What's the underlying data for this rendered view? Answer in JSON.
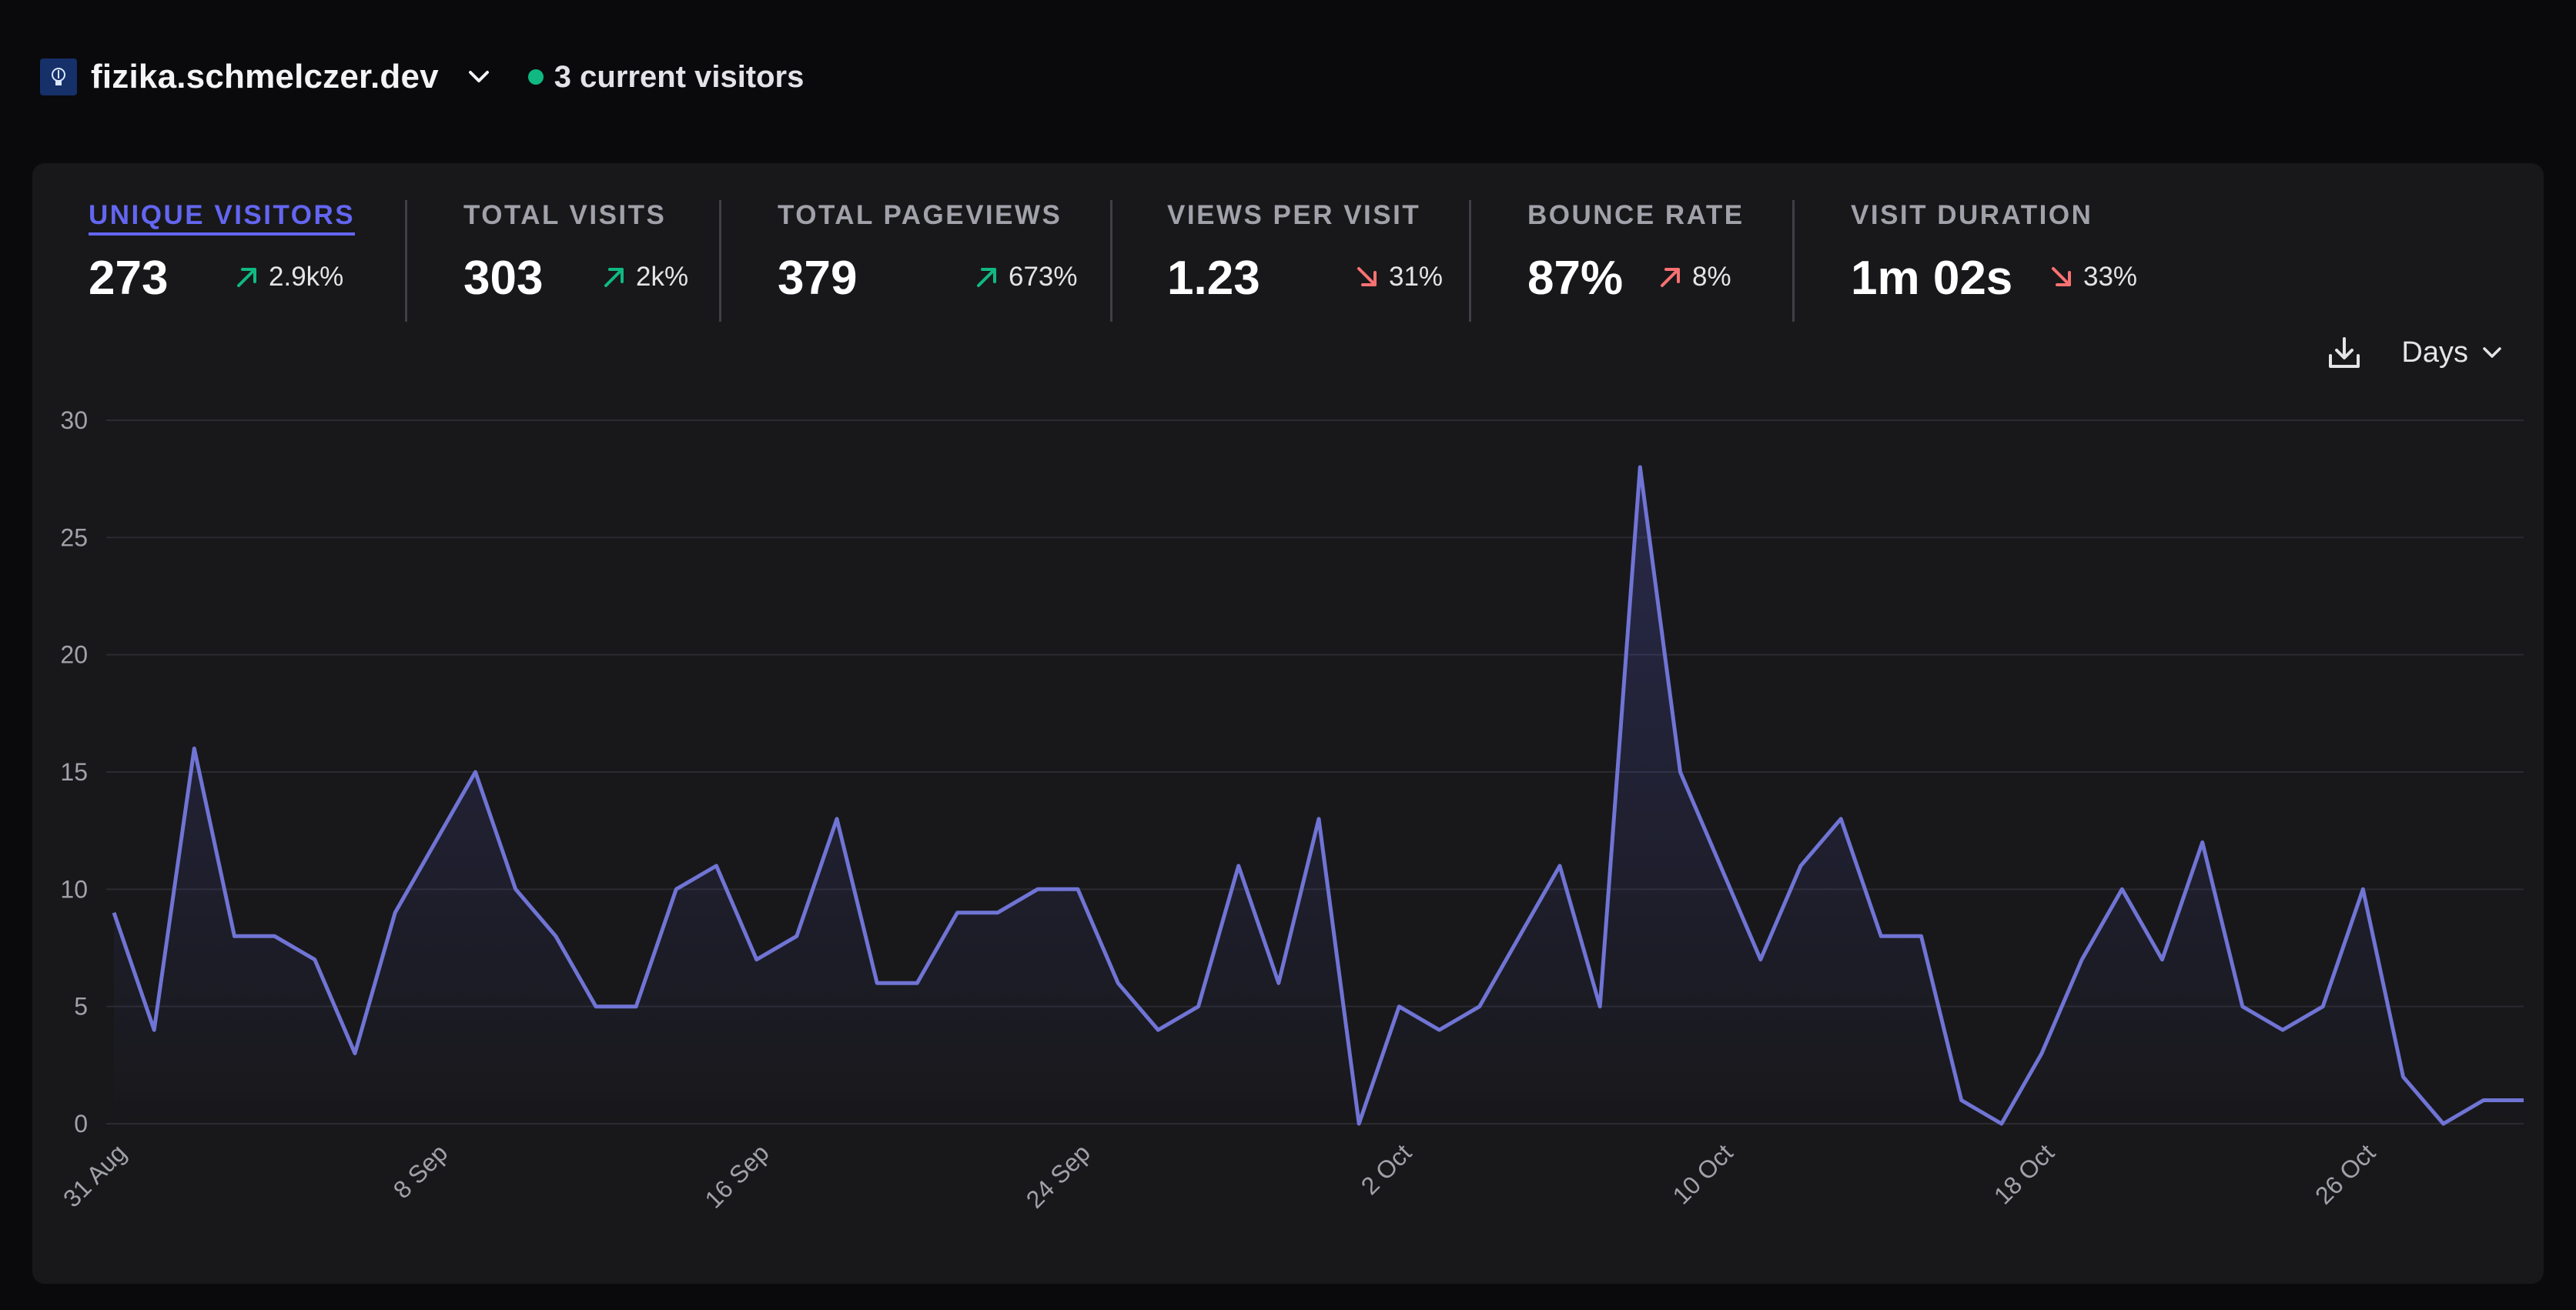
{
  "header": {
    "domain": "fizika.schmelczer.dev",
    "current_visitors": "3 current visitors",
    "live_color": "#10b981"
  },
  "stats": [
    {
      "label": "UNIQUE VISITORS",
      "value": "273",
      "change": "2.9k%",
      "direction": "up",
      "active": true
    },
    {
      "label": "TOTAL VISITS",
      "value": "303",
      "change": "2k%",
      "direction": "up",
      "active": false
    },
    {
      "label": "TOTAL PAGEVIEWS",
      "value": "379",
      "change": "673%",
      "direction": "up",
      "active": false
    },
    {
      "label": "VIEWS PER VISIT",
      "value": "1.23",
      "change": "31%",
      "direction": "down",
      "active": false
    },
    {
      "label": "BOUNCE RATE",
      "value": "87%",
      "change": "8%",
      "direction": "up-bad",
      "active": false
    },
    {
      "label": "VISIT DURATION",
      "value": "1m 02s",
      "change": "33%",
      "direction": "down",
      "active": false
    }
  ],
  "controls": {
    "interval": "Days",
    "download_icon": "download-icon"
  },
  "colors": {
    "accent": "#6366f1",
    "line": "#7074d4",
    "positive": "#10b981",
    "negative": "#f87171"
  },
  "chart_data": {
    "type": "area",
    "title": "",
    "xlabel": "",
    "ylabel": "",
    "ylim": [
      0,
      30
    ],
    "y_ticks": [
      "0",
      "5",
      "10",
      "15",
      "20",
      "25",
      "30"
    ],
    "x_tick_labels": [
      "31 Aug",
      "8 Sep",
      "16 Sep",
      "24 Sep",
      "2 Oct",
      "10 Oct",
      "18 Oct",
      "26 Oct"
    ],
    "grid": true,
    "x": [
      "31 Aug",
      "1 Sep",
      "2 Sep",
      "3 Sep",
      "4 Sep",
      "5 Sep",
      "6 Sep",
      "7 Sep",
      "8 Sep",
      "9 Sep",
      "10 Sep",
      "11 Sep",
      "12 Sep",
      "13 Sep",
      "14 Sep",
      "15 Sep",
      "16 Sep",
      "17 Sep",
      "18 Sep",
      "19 Sep",
      "20 Sep",
      "21 Sep",
      "22 Sep",
      "23 Sep",
      "24 Sep",
      "25 Sep",
      "26 Sep",
      "27 Sep",
      "28 Sep",
      "29 Sep",
      "30 Sep",
      "1 Oct",
      "2 Oct",
      "3 Oct",
      "4 Oct",
      "5 Oct",
      "6 Oct",
      "7 Oct",
      "8 Oct",
      "9 Oct",
      "10 Oct",
      "11 Oct",
      "12 Oct",
      "13 Oct",
      "14 Oct",
      "15 Oct",
      "16 Oct",
      "17 Oct",
      "18 Oct",
      "19 Oct",
      "20 Oct",
      "21 Oct",
      "22 Oct",
      "23 Oct",
      "24 Oct",
      "25 Oct",
      "26 Oct",
      "27 Oct",
      "28 Oct",
      "29 Oct",
      "30 Oct"
    ],
    "series": [
      {
        "values": [
          9,
          4,
          16,
          8,
          8,
          7,
          3,
          9,
          12,
          15,
          10,
          8,
          5,
          5,
          10,
          11,
          7,
          8,
          13,
          6,
          6,
          9,
          9,
          10,
          10,
          6,
          4,
          5,
          11,
          6,
          13,
          0,
          5,
          4,
          5,
          8,
          11,
          5,
          28,
          15,
          11,
          7,
          11,
          13,
          8,
          8,
          1,
          0,
          3,
          7,
          10,
          7,
          12,
          5,
          4,
          5,
          10,
          2,
          0,
          1,
          1
        ]
      }
    ]
  }
}
